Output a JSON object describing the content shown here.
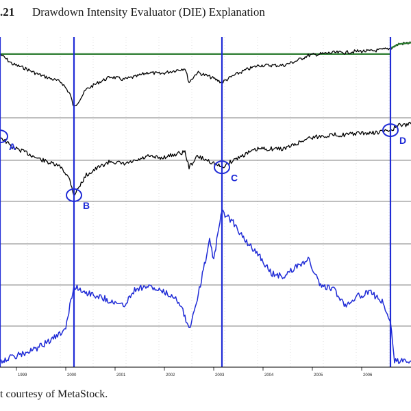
{
  "figure": {
    "number": ".21",
    "title": "Drawdown Intensity Evaluator (DIE) Explanation",
    "caption": "t courtesy of MetaStock."
  },
  "chart_data": {
    "type": "line",
    "panels": [
      {
        "name": "price_top",
        "reference_level": "peak",
        "color": "#000000",
        "reference_color": "#2e7d32"
      },
      {
        "name": "price_drawdown",
        "color": "#000000"
      },
      {
        "name": "die_indicator",
        "color": "#1f2bd6"
      }
    ],
    "x_tick_labels": [
      "1999",
      "2000",
      "2001",
      "2002",
      "2003",
      "2004",
      "2005",
      "2006"
    ],
    "x_range": [
      "1998-09",
      "2007-01"
    ],
    "markers": [
      {
        "label": "A",
        "date": "1998-09"
      },
      {
        "label": "B",
        "date": "2000-03"
      },
      {
        "label": "C",
        "date": "2003-03"
      },
      {
        "label": "D",
        "date": "2006-08"
      }
    ],
    "series": [
      {
        "panel": "price_top",
        "x": [
          "1998-09",
          "1998-12",
          "1999-03",
          "1999-06",
          "1999-09",
          "1999-12",
          "2000-02",
          "2000-03",
          "2000-06",
          "2000-09",
          "2000-12",
          "2001-03",
          "2001-06",
          "2001-09",
          "2001-12",
          "2002-03",
          "2002-06",
          "2002-07",
          "2002-09",
          "2002-12",
          "2003-03",
          "2003-06",
          "2003-09",
          "2003-12",
          "2004-03",
          "2004-06",
          "2004-09",
          "2004-12",
          "2005-03",
          "2005-06",
          "2005-09",
          "2005-12",
          "2006-03",
          "2006-06",
          "2006-08",
          "2006-10",
          "2007-01"
        ],
        "y": [
          100,
          93,
          90,
          86,
          83,
          80,
          72,
          62,
          75,
          80,
          84,
          82,
          84,
          87,
          86,
          88,
          90,
          80,
          87,
          84,
          80,
          85,
          89,
          92,
          92,
          92,
          95,
          99,
          100,
          101,
          101,
          102,
          102,
          103,
          104,
          107,
          108
        ]
      },
      {
        "panel": "price_drawdown",
        "x": [
          "1998-09",
          "1998-12",
          "1999-03",
          "1999-06",
          "1999-09",
          "1999-12",
          "2000-02",
          "2000-03",
          "2000-06",
          "2000-09",
          "2000-12",
          "2001-03",
          "2001-06",
          "2001-09",
          "2001-12",
          "2002-03",
          "2002-06",
          "2002-07",
          "2002-09",
          "2002-12",
          "2003-03",
          "2003-06",
          "2003-09",
          "2003-12",
          "2004-03",
          "2004-06",
          "2004-09",
          "2004-12",
          "2005-03",
          "2005-06",
          "2005-09",
          "2005-12",
          "2006-03",
          "2006-06",
          "2006-08",
          "2006-10",
          "2007-01"
        ],
        "y": [
          0,
          -7,
          -10,
          -14,
          -17,
          -20,
          -28,
          -38,
          -25,
          -20,
          -16,
          -18,
          -16,
          -13,
          -14,
          -12,
          -10,
          -20,
          -13,
          -16,
          -20,
          -15,
          -11,
          -8,
          -8,
          -8,
          -5,
          -1,
          0,
          1,
          1,
          2,
          2,
          3,
          4,
          7,
          8
        ]
      },
      {
        "panel": "die_indicator",
        "x": [
          "1998-09",
          "1998-12",
          "1999-03",
          "1999-06",
          "1999-09",
          "1999-12",
          "2000-01",
          "2000-03",
          "2000-06",
          "2000-09",
          "2000-12",
          "2001-03",
          "2001-06",
          "2001-09",
          "2001-12",
          "2002-03",
          "2002-05",
          "2002-07",
          "2002-09",
          "2002-12",
          "2003-01",
          "2003-03",
          "2003-06",
          "2003-09",
          "2003-12",
          "2004-03",
          "2004-06",
          "2004-09",
          "2004-12",
          "2005-03",
          "2005-06",
          "2005-09",
          "2005-12",
          "2006-03",
          "2006-06",
          "2006-08",
          "2006-09",
          "2007-01"
        ],
        "y": [
          0,
          3,
          6,
          10,
          16,
          22,
          28,
          60,
          55,
          52,
          48,
          44,
          58,
          60,
          56,
          52,
          46,
          25,
          50,
          96,
          82,
          120,
          110,
          95,
          85,
          70,
          68,
          75,
          82,
          60,
          58,
          45,
          52,
          55,
          48,
          30,
          0,
          0
        ]
      }
    ]
  }
}
